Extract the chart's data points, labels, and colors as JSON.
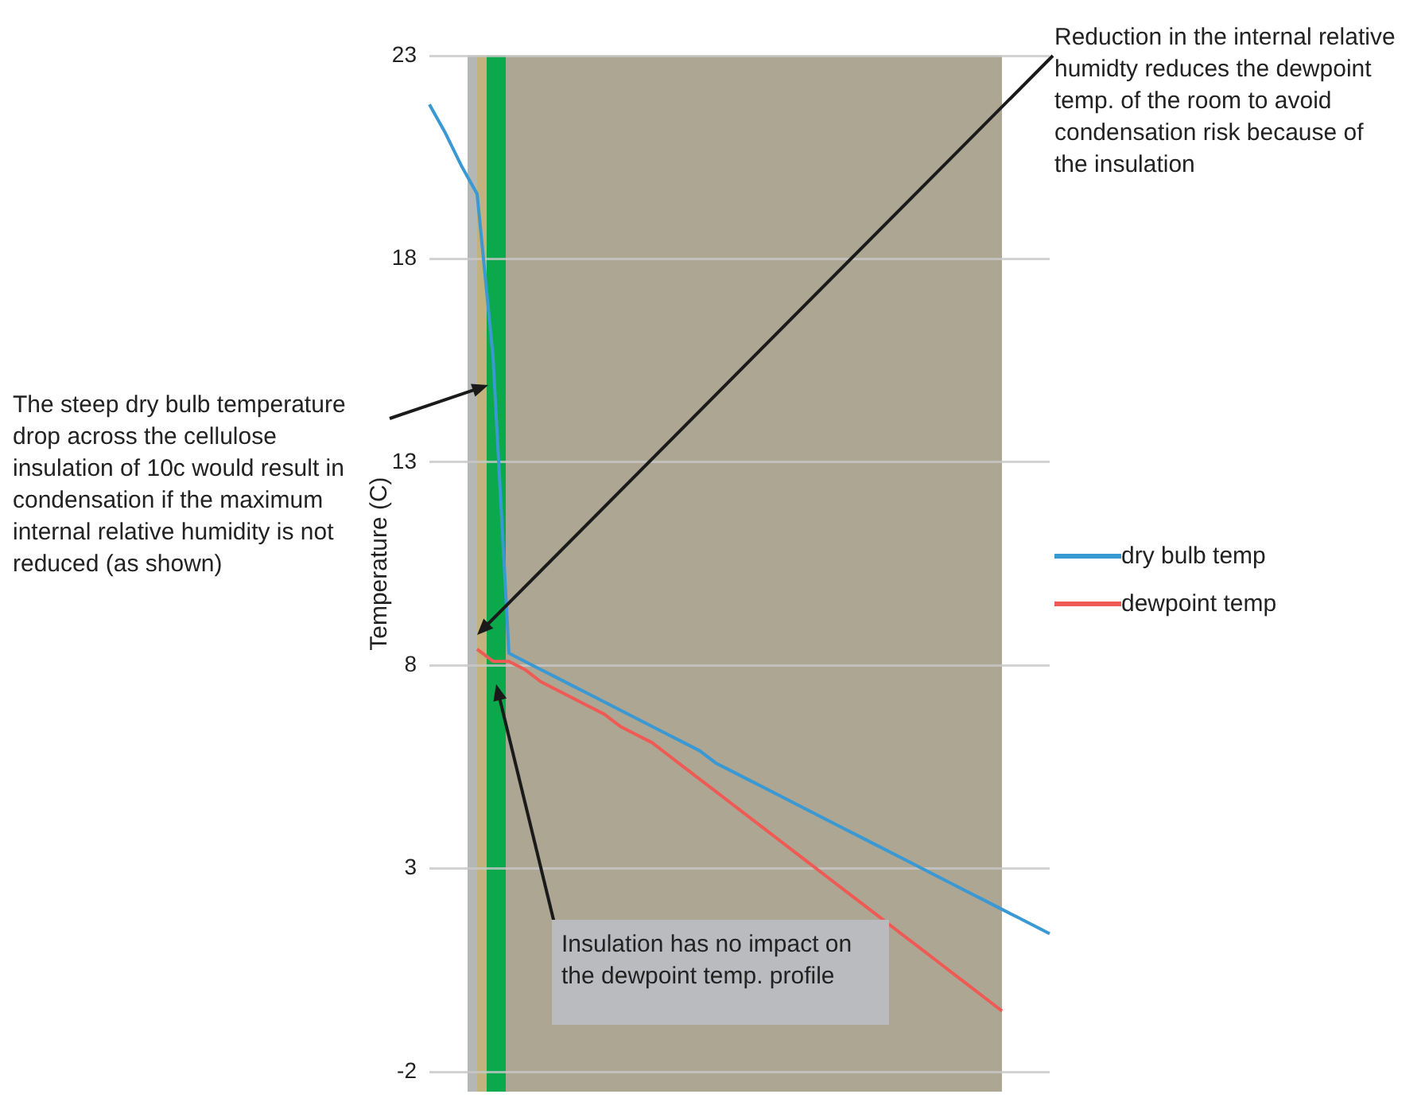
{
  "chart_data": {
    "type": "line",
    "ylabel": "Temperature (C)",
    "ylim": [
      -2,
      23
    ],
    "yticks": [
      -2,
      3,
      8,
      13,
      18,
      23
    ],
    "tick_labels": "y",
    "grid": "y",
    "legend": "right",
    "marker": "none",
    "line_style": "solid",
    "categories": [
      null,
      null,
      null,
      null,
      null,
      null,
      null,
      null,
      null,
      null,
      null,
      null,
      null,
      null,
      null,
      null,
      null,
      null,
      null,
      null,
      null,
      null,
      null,
      null,
      null,
      null,
      null,
      null,
      null,
      null,
      null,
      null,
      null,
      null,
      null,
      null,
      null,
      null,
      null,
      null
    ],
    "series": [
      {
        "name": "dry bulb temp",
        "color": "#3a98d3",
        "values": [
          21.8,
          21.1,
          20.3,
          19.6,
          15.6,
          8.3,
          8.1,
          7.9,
          7.7,
          7.5,
          7.3,
          7.1,
          6.9,
          6.7,
          6.5,
          6.3,
          6.1,
          5.9,
          5.6,
          5.4,
          5.2,
          5.0,
          4.8,
          4.6,
          4.4,
          4.2,
          4.0,
          3.8,
          3.6,
          3.4,
          3.2,
          3.0,
          2.8,
          2.6,
          2.4,
          2.2,
          2.0,
          1.8,
          1.6,
          1.4
        ]
      },
      {
        "name": "dewpoint temp",
        "color": "#ef5a55",
        "values": [
          null,
          null,
          null,
          8.4,
          8.1,
          8.1,
          7.9,
          7.6,
          7.4,
          7.2,
          7.0,
          6.8,
          6.5,
          6.3,
          6.1,
          5.8,
          5.5,
          5.2,
          4.9,
          4.6,
          4.3,
          4.0,
          3.7,
          3.4,
          3.1,
          2.8,
          2.5,
          2.2,
          1.9,
          1.6,
          1.3,
          1.0,
          0.7,
          0.4,
          0.1,
          -0.2,
          -0.5,
          null,
          null,
          null
        ]
      }
    ],
    "annotations": [
      "Reduction in the internal relative humidty reduces the dewpoint temp. of the room to avoid condensation risk because of the insulation",
      "The steep dry bulb temperature drop across the cellulose insulation of 10c would result in condensation if the maximum internal relative humidity is not reduced (as shown)",
      "Insulation has no impact on the dewpoint temp. profile"
    ]
  }
}
